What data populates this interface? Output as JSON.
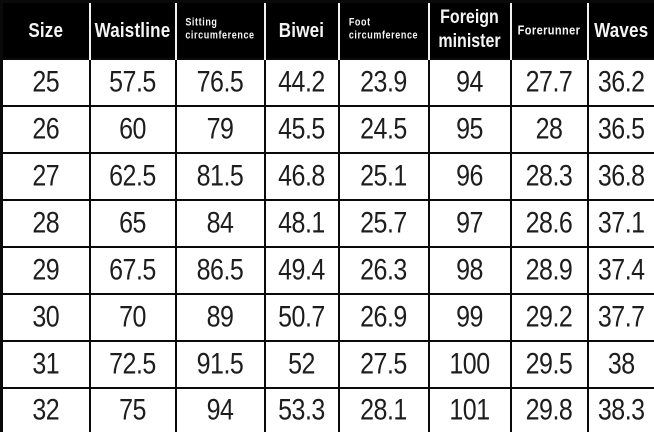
{
  "colors": {
    "header_bg": "#000000",
    "header_text": "#f5f5f5",
    "header_divider": "#f0f0f0",
    "grid_border": "#0a0a0a",
    "body_bg": "#ffffff",
    "body_text": "#1d1d1d"
  },
  "table": {
    "name": "size-chart",
    "columns": [
      {
        "id": "size",
        "label": "Size",
        "lines": [
          "Size"
        ],
        "style": "lg"
      },
      {
        "id": "waistline",
        "label": "Waistline",
        "lines": [
          "Waistline"
        ],
        "style": "lg"
      },
      {
        "id": "sitting-circumference",
        "label": "Sitting circumference",
        "lines": [
          "Sitting",
          "circumference"
        ],
        "style": "sm"
      },
      {
        "id": "biwei",
        "label": "Biwei",
        "lines": [
          "Biwei"
        ],
        "style": "lg"
      },
      {
        "id": "foot-circumference",
        "label": "Foot circumference",
        "lines": [
          "Foot",
          "circumference"
        ],
        "style": "sm"
      },
      {
        "id": "foreign-minister",
        "label": "Foreign minister",
        "lines": [
          "Foreign",
          "minister"
        ],
        "style": "md"
      },
      {
        "id": "forerunner",
        "label": "Forerunner",
        "lines": [
          "Forerunner"
        ],
        "style": "sm2"
      },
      {
        "id": "waves",
        "label": "Waves",
        "lines": [
          "Waves"
        ],
        "style": "lg"
      }
    ],
    "rows": [
      [
        "25",
        "57.5",
        "76.5",
        "44.2",
        "23.9",
        "94",
        "27.7",
        "36.2"
      ],
      [
        "26",
        "60",
        "79",
        "45.5",
        "24.5",
        "95",
        "28",
        "36.5"
      ],
      [
        "27",
        "62.5",
        "81.5",
        "46.8",
        "25.1",
        "96",
        "28.3",
        "36.8"
      ],
      [
        "28",
        "65",
        "84",
        "48.1",
        "25.7",
        "97",
        "28.6",
        "37.1"
      ],
      [
        "29",
        "67.5",
        "86.5",
        "49.4",
        "26.3",
        "98",
        "28.9",
        "37.4"
      ],
      [
        "30",
        "70",
        "89",
        "50.7",
        "26.9",
        "99",
        "29.2",
        "37.7"
      ],
      [
        "31",
        "72.5",
        "91.5",
        "52",
        "27.5",
        "100",
        "29.5",
        "38"
      ],
      [
        "32",
        "75",
        "94",
        "53.3",
        "28.1",
        "101",
        "29.8",
        "38.3"
      ]
    ]
  }
}
